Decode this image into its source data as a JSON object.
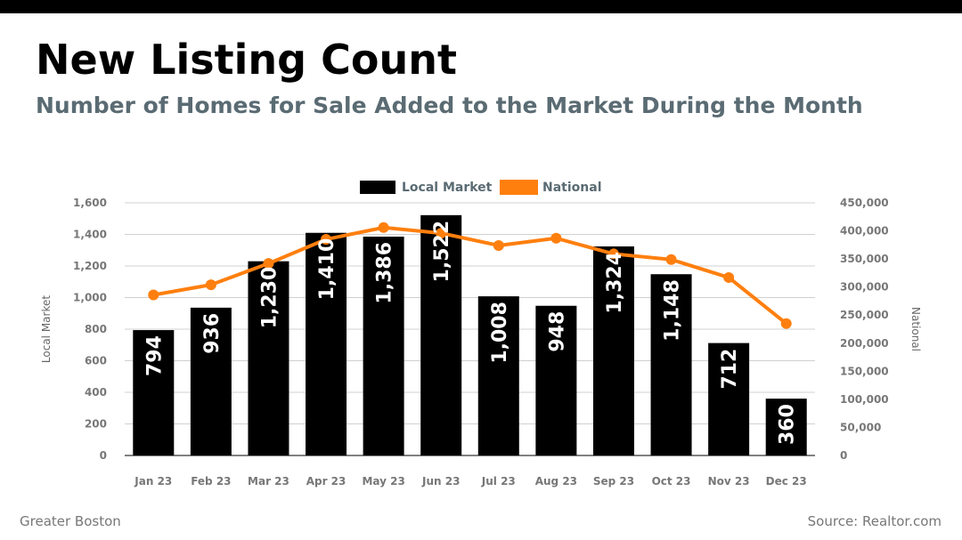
{
  "header": {
    "title": "New Listing Count",
    "subtitle": "Number of Homes for Sale Added to the Market During the Month"
  },
  "footer": {
    "region": "Greater Boston",
    "source": "Source: Realtor.com"
  },
  "colors": {
    "local": "#000000",
    "national": "#ff7f0e",
    "subtitle": "#5a6b73"
  },
  "chart_data": {
    "type": "bar",
    "title": "New Listing Count",
    "categories": [
      "Jan 23",
      "Feb 23",
      "Mar 23",
      "Apr 23",
      "May 23",
      "Jun 23",
      "Jul 23",
      "Aug 23",
      "Sep 23",
      "Oct 23",
      "Nov 23",
      "Dec 23"
    ],
    "series": [
      {
        "name": "Local Market",
        "type": "bar",
        "axis": "left",
        "values": [
          794,
          936,
          1230,
          1410,
          1386,
          1522,
          1008,
          948,
          1324,
          1148,
          712,
          360
        ],
        "labels": [
          "794",
          "936",
          "1,230",
          "1,410",
          "1,386",
          "1,522",
          "1,008",
          "948",
          "1,324",
          "1,148",
          "712",
          "360"
        ]
      },
      {
        "name": "National",
        "type": "line",
        "axis": "right",
        "values": [
          286000,
          304000,
          342000,
          385000,
          406000,
          396000,
          374000,
          387000,
          359000,
          349000,
          317000,
          235000
        ]
      }
    ],
    "ylabel": "Local Market",
    "y2label": "National",
    "ylim": [
      0,
      1600
    ],
    "y2lim": [
      0,
      450000
    ],
    "yticks": [
      "0",
      "200",
      "400",
      "600",
      "800",
      "1,000",
      "1,200",
      "1,400",
      "1,600"
    ],
    "y2ticks": [
      "0",
      "50,000",
      "100,000",
      "150,000",
      "200,000",
      "250,000",
      "300,000",
      "350,000",
      "400,000",
      "450,000"
    ],
    "legend": [
      "Local Market",
      "National"
    ],
    "legend_position": "top-center",
    "grid": true
  }
}
